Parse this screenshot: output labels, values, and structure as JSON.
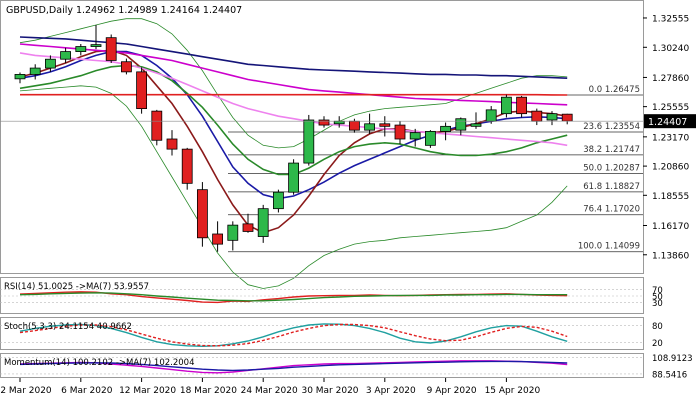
{
  "chart_data": {
    "type": "candlestick",
    "symbol": "GBPUSD",
    "timeframe": "Daily",
    "title": "GBPUSD,Daily  1.24962 1.24989 1.24164 1.24407",
    "ohlc_header": {
      "open": "1.24962",
      "high": "1.24989",
      "low": "1.24164",
      "close": "1.24407"
    },
    "last_price_label": "1.24407",
    "y_ticks": [
      "1.32555",
      "1.30240",
      "1.27860",
      "1.25555",
      "1.23170",
      "1.20860",
      "1.18555",
      "1.16170",
      "1.13860"
    ],
    "x_labels": [
      "2 Mar 2020",
      "6 Mar 2020",
      "12 Mar 2020",
      "18 Mar 2020",
      "24 Mar 2020",
      "30 Mar 2020",
      "3 Apr 2020",
      "9 Apr 2020",
      "15 Apr 2020"
    ],
    "ylim": [
      1.125,
      1.335
    ],
    "candles": [
      {
        "o": 1.2775,
        "h": 1.2825,
        "l": 1.274,
        "c": 1.281
      },
      {
        "o": 1.281,
        "h": 1.289,
        "l": 1.277,
        "c": 1.286
      },
      {
        "o": 1.286,
        "h": 1.296,
        "l": 1.283,
        "c": 1.293
      },
      {
        "o": 1.293,
        "h": 1.302,
        "l": 1.29,
        "c": 1.299
      },
      {
        "o": 1.299,
        "h": 1.305,
        "l": 1.296,
        "c": 1.303
      },
      {
        "o": 1.303,
        "h": 1.32,
        "l": 1.301,
        "c": 1.3045
      },
      {
        "o": 1.31,
        "h": 1.3125,
        "l": 1.29,
        "c": 1.292
      },
      {
        "o": 1.291,
        "h": 1.2935,
        "l": 1.281,
        "c": 1.283
      },
      {
        "o": 1.283,
        "h": 1.2865,
        "l": 1.25,
        "c": 1.254
      },
      {
        "o": 1.252,
        "h": 1.253,
        "l": 1.225,
        "c": 1.229
      },
      {
        "o": 1.23,
        "h": 1.237,
        "l": 1.217,
        "c": 1.222
      },
      {
        "o": 1.222,
        "h": 1.223,
        "l": 1.19,
        "c": 1.195
      },
      {
        "o": 1.19,
        "h": 1.196,
        "l": 1.145,
        "c": 1.152
      },
      {
        "o": 1.155,
        "h": 1.165,
        "l": 1.141,
        "c": 1.147
      },
      {
        "o": 1.15,
        "h": 1.165,
        "l": 1.142,
        "c": 1.162
      },
      {
        "o": 1.163,
        "h": 1.171,
        "l": 1.156,
        "c": 1.157
      },
      {
        "o": 1.153,
        "h": 1.178,
        "l": 1.148,
        "c": 1.175
      },
      {
        "o": 1.175,
        "h": 1.19,
        "l": 1.172,
        "c": 1.188
      },
      {
        "o": 1.188,
        "h": 1.214,
        "l": 1.186,
        "c": 1.211
      },
      {
        "o": 1.211,
        "h": 1.249,
        "l": 1.209,
        "c": 1.245
      },
      {
        "o": 1.245,
        "h": 1.248,
        "l": 1.239,
        "c": 1.241
      },
      {
        "o": 1.242,
        "h": 1.248,
        "l": 1.239,
        "c": 1.244
      },
      {
        "o": 1.244,
        "h": 1.246,
        "l": 1.235,
        "c": 1.237
      },
      {
        "o": 1.237,
        "h": 1.25,
        "l": 1.234,
        "c": 1.242
      },
      {
        "o": 1.242,
        "h": 1.248,
        "l": 1.232,
        "c": 1.24
      },
      {
        "o": 1.241,
        "h": 1.244,
        "l": 1.226,
        "c": 1.23
      },
      {
        "o": 1.23,
        "h": 1.238,
        "l": 1.224,
        "c": 1.235
      },
      {
        "o": 1.225,
        "h": 1.237,
        "l": 1.223,
        "c": 1.236
      },
      {
        "o": 1.236,
        "h": 1.243,
        "l": 1.229,
        "c": 1.24
      },
      {
        "o": 1.237,
        "h": 1.247,
        "l": 1.233,
        "c": 1.246
      },
      {
        "o": 1.24,
        "h": 1.251,
        "l": 1.238,
        "c": 1.242
      },
      {
        "o": 1.244,
        "h": 1.256,
        "l": 1.242,
        "c": 1.253
      },
      {
        "o": 1.25,
        "h": 1.265,
        "l": 1.247,
        "c": 1.263
      },
      {
        "o": 1.263,
        "h": 1.264,
        "l": 1.247,
        "c": 1.25
      },
      {
        "o": 1.252,
        "h": 1.254,
        "l": 1.241,
        "c": 1.244
      },
      {
        "o": 1.245,
        "h": 1.252,
        "l": 1.241,
        "c": 1.25
      },
      {
        "o": 1.2496,
        "h": 1.2499,
        "l": 1.2416,
        "c": 1.2441
      }
    ],
    "moving_averages": [
      {
        "color": "#1a1aa6",
        "values": [
          1.278,
          1.28,
          1.283,
          1.287,
          1.292,
          1.296,
          1.299,
          1.299,
          1.296,
          1.288,
          1.278,
          1.265,
          1.248,
          1.228,
          1.208,
          1.195,
          1.186,
          1.183,
          1.185,
          1.19,
          1.196,
          1.203,
          1.209,
          1.214,
          1.219,
          1.224,
          1.229,
          1.233,
          1.237,
          1.24,
          1.242,
          1.244,
          1.246,
          1.247,
          1.2475,
          1.247,
          1.246
        ]
      },
      {
        "color": "#8b1a1a",
        "values": [
          1.279,
          1.282,
          1.286,
          1.29,
          1.295,
          1.299,
          1.3,
          1.296,
          1.286,
          1.272,
          1.258,
          1.24,
          1.22,
          1.198,
          1.178,
          1.162,
          1.156,
          1.16,
          1.17,
          1.185,
          1.202,
          1.217,
          1.227,
          1.234,
          1.238,
          1.238,
          1.236,
          1.235,
          1.236,
          1.239,
          1.242,
          1.246,
          1.251,
          1.252,
          1.251,
          1.25,
          1.248
        ]
      },
      {
        "color": "#2a8a2a",
        "values": [
          1.27,
          1.272,
          1.274,
          1.277,
          1.28,
          1.284,
          1.287,
          1.288,
          1.287,
          1.283,
          1.276,
          1.266,
          1.255,
          1.241,
          1.226,
          1.214,
          1.206,
          1.202,
          1.202,
          1.207,
          1.214,
          1.22,
          1.224,
          1.226,
          1.227,
          1.226,
          1.223,
          1.22,
          1.218,
          1.217,
          1.217,
          1.218,
          1.22,
          1.223,
          1.227,
          1.23,
          1.233
        ]
      },
      {
        "color": "#ee82ee",
        "values": [
          1.298,
          1.296,
          1.295,
          1.294,
          1.293,
          1.292,
          1.291,
          1.289,
          1.286,
          1.282,
          1.278,
          1.273,
          1.268,
          1.263,
          1.258,
          1.254,
          1.251,
          1.248,
          1.246,
          1.244,
          1.242,
          1.241,
          1.24,
          1.239,
          1.238,
          1.237,
          1.236,
          1.235,
          1.234,
          1.233,
          1.232,
          1.231,
          1.23,
          1.229,
          1.228,
          1.227,
          1.225
        ]
      },
      {
        "color": "#cc00cc",
        "values": [
          1.305,
          1.304,
          1.303,
          1.302,
          1.301,
          1.3,
          1.299,
          1.298,
          1.296,
          1.294,
          1.292,
          1.289,
          1.286,
          1.283,
          1.28,
          1.277,
          1.275,
          1.273,
          1.271,
          1.269,
          1.268,
          1.267,
          1.266,
          1.265,
          1.264,
          1.263,
          1.262,
          1.2615,
          1.261,
          1.2605,
          1.26,
          1.2595,
          1.259,
          1.2585,
          1.258,
          1.2575,
          1.257
        ]
      },
      {
        "color": "#141478",
        "values": [
          1.3105,
          1.31,
          1.3095,
          1.309,
          1.308,
          1.307,
          1.306,
          1.305,
          1.303,
          1.301,
          1.299,
          1.297,
          1.295,
          1.293,
          1.291,
          1.289,
          1.288,
          1.287,
          1.286,
          1.285,
          1.2845,
          1.284,
          1.2835,
          1.283,
          1.2825,
          1.282,
          1.2815,
          1.281,
          1.281,
          1.2805,
          1.2805,
          1.28,
          1.28,
          1.2795,
          1.279,
          1.2785,
          1.278
        ]
      },
      {
        "color": "#e02020",
        "values": [
          1.265,
          1.265,
          1.265,
          1.265,
          1.265,
          1.265,
          1.265,
          1.265,
          1.265,
          1.265,
          1.265,
          1.265,
          1.265,
          1.265,
          1.265,
          1.265,
          1.265,
          1.265,
          1.265,
          1.265,
          1.265,
          1.265,
          1.265,
          1.265,
          1.265,
          1.265,
          1.265,
          1.265,
          1.265,
          1.265,
          1.265,
          1.265,
          1.265,
          1.265,
          1.265,
          1.2648,
          1.2647
        ]
      }
    ],
    "bollinger": {
      "color": "#2a8a2a",
      "upper": [
        1.306,
        1.308,
        1.311,
        1.314,
        1.317,
        1.32,
        1.323,
        1.325,
        1.325,
        1.321,
        1.313,
        1.3,
        1.284,
        1.265,
        1.247,
        1.233,
        1.225,
        1.223,
        1.224,
        1.23,
        1.237,
        1.244,
        1.249,
        1.252,
        1.254,
        1.255,
        1.256,
        1.257,
        1.258,
        1.262,
        1.266,
        1.27,
        1.274,
        1.278,
        1.28,
        1.28,
        1.279
      ],
      "lower": [
        1.268,
        1.269,
        1.27,
        1.271,
        1.272,
        1.271,
        1.266,
        1.256,
        1.24,
        1.22,
        1.2,
        1.18,
        1.16,
        1.14,
        1.125,
        1.115,
        1.112,
        1.114,
        1.12,
        1.13,
        1.138,
        1.143,
        1.147,
        1.149,
        1.15,
        1.152,
        1.153,
        1.154,
        1.155,
        1.156,
        1.157,
        1.158,
        1.16,
        1.165,
        1.17,
        1.18,
        1.193
      ]
    },
    "fibonacci": [
      {
        "label": "0.0 1.26475",
        "value": 1.26475
      },
      {
        "label": "23.6 1.23554",
        "value": 1.23554
      },
      {
        "label": "38.2 1.21747",
        "value": 1.21747
      },
      {
        "label": "50.0 1.20287",
        "value": 1.20287
      },
      {
        "label": "61.8 1.18827",
        "value": 1.18827
      },
      {
        "label": "76.4 1.17020",
        "value": 1.1702
      },
      {
        "label": "100.0 1.14099",
        "value": 1.14099
      }
    ],
    "fib_line_color": "#333333",
    "bull_color": "#2db84a",
    "bear_color": "#e02020",
    "grid": false,
    "panels": [
      {
        "id": "rsi",
        "title": "RSI(14) 51.0025  ->MA(7) 53.9557",
        "ticks": [
          "70",
          "50",
          "30"
        ],
        "ylim": [
          0,
          100
        ],
        "lines": [
          {
            "color": "#e02020",
            "values": [
              56,
              58,
              60,
              62,
              63,
              62,
              57,
              54,
              48,
              44,
              40,
              36,
              31,
              30,
              34,
              33,
              38,
              42,
              47,
              50,
              51,
              52,
              52,
              53,
              52,
              51,
              52,
              53,
              54,
              55,
              55,
              56,
              57,
              55,
              53,
              52,
              51
            ]
          },
          {
            "color": "#2a8a2a",
            "values": [
              54,
              55,
              57,
              58,
              59,
              60,
              59,
              57,
              54,
              50,
              47,
              43,
              40,
              37,
              36,
              35,
              35,
              37,
              39,
              42,
              45,
              47,
              49,
              50,
              51,
              52,
              52,
              52,
              53,
              53,
              54,
              54,
              55,
              55,
              54,
              54,
              54
            ]
          }
        ]
      },
      {
        "id": "stoch",
        "title": "Stoch(5,3,3) 24.1154 40.9662",
        "ticks": [
          "80",
          "20"
        ],
        "ylim": [
          0,
          100
        ],
        "lines": [
          {
            "color": "#20a0a0",
            "values": [
              60,
              70,
              78,
              82,
              84,
              80,
              70,
              55,
              38,
              22,
              12,
              8,
              6,
              8,
              15,
              25,
              40,
              58,
              72,
              82,
              86,
              85,
              80,
              70,
              55,
              35,
              22,
              18,
              25,
              40,
              58,
              72,
              80,
              78,
              60,
              40,
              24
            ]
          },
          {
            "color": "#e02020",
            "values": [
              55,
              62,
              70,
              78,
              82,
              82,
              76,
              65,
              50,
              35,
              22,
              14,
              9,
              8,
              10,
              16,
              27,
              41,
              57,
              70,
              80,
              84,
              84,
              80,
              72,
              58,
              44,
              32,
              26,
              28,
              40,
              56,
              70,
              77,
              74,
              60,
              41
            ]
          }
        ]
      },
      {
        "id": "momentum",
        "title": "Momentum(14) 100.2102  ->MA(7) 102.2004",
        "ticks": [
          "108.9123",
          "88.5416"
        ],
        "ylim": [
          86,
          111
        ],
        "lines": [
          {
            "color": "#cc00cc",
            "values": [
              101,
              101.5,
              102,
              102.5,
              103,
              102.5,
              101,
              99.5,
              98,
              96,
              94,
              92,
              90.5,
              90,
              91,
              93,
              95,
              97,
              99,
              100,
              101,
              101.5,
              101.5,
              102,
              102.5,
              103,
              103.5,
              104,
              104.5,
              105,
              105,
              105,
              104.5,
              104,
              103,
              102,
              100.2
            ]
          },
          {
            "color": "#1a1aa6",
            "values": [
              100.5,
              101,
              101.5,
              102,
              102.3,
              102.5,
              102.3,
              101.5,
              100.5,
              99,
              97.5,
              96,
              94.5,
              93.5,
              93,
              93.5,
              94.5,
              95.5,
              97,
              98,
              99,
              100,
              100.5,
              101,
              101.5,
              102,
              102.5,
              103,
              103.3,
              103.8,
              104,
              104.2,
              104.2,
              104,
              103.5,
              103,
              102.2
            ]
          }
        ]
      }
    ]
  }
}
